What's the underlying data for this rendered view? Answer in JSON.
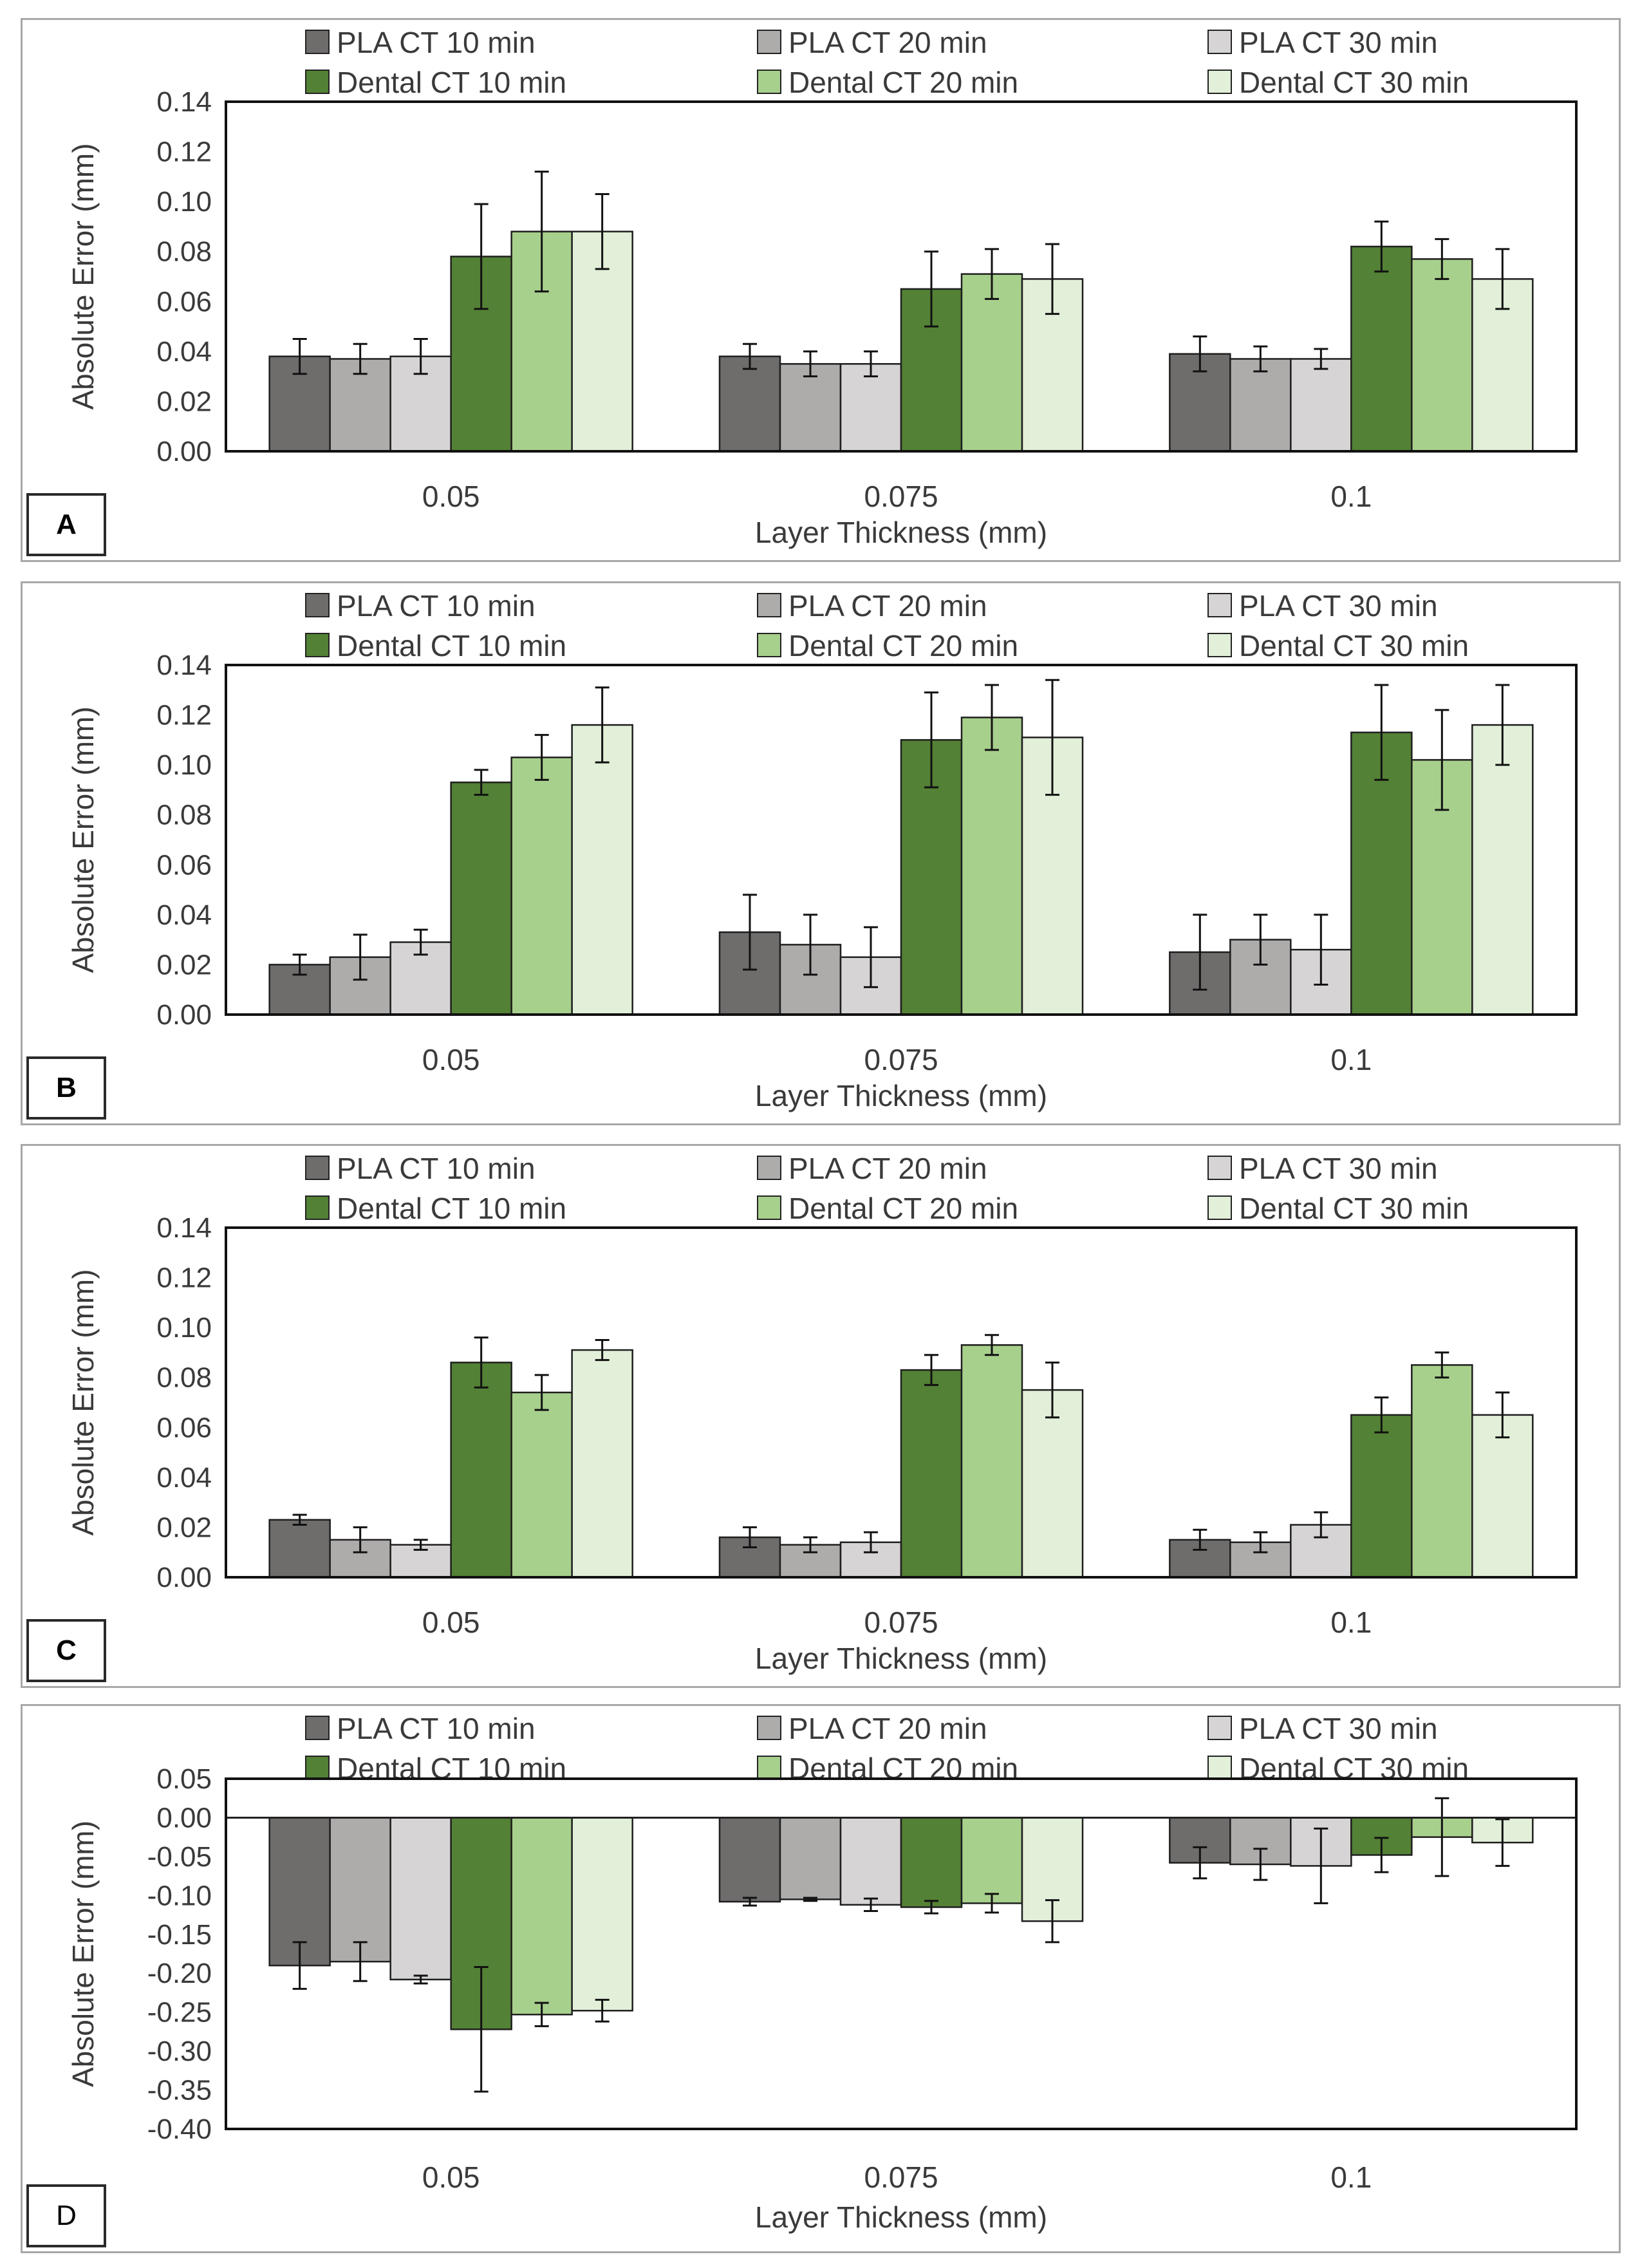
{
  "legend": [
    {
      "name": "PLA CT 10 min",
      "color": "#6f6c6c"
    },
    {
      "name": "PLA CT 20 min",
      "color": "#aeabab"
    },
    {
      "name": "PLA CT 30 min",
      "color": "#d6d4d4"
    },
    {
      "name": "Dental CT 10 min",
      "color": "#538135"
    },
    {
      "name": "Dental CT 20 min",
      "color": "#a8d08d"
    },
    {
      "name": "Dental CT 30 min",
      "color": "#e2efd9"
    }
  ],
  "chart_data": [
    {
      "panel": "A",
      "type": "bar",
      "xlabel": "Layer Thickness (mm)",
      "ylabel": "Absolute Error (mm)",
      "categories": [
        "0.05",
        "0.075",
        "0.1"
      ],
      "ylim": [
        0,
        0.14
      ],
      "yticks": [
        "0.00",
        "0.02",
        "0.04",
        "0.06",
        "0.08",
        "0.10",
        "0.12",
        "0.14"
      ],
      "series": [
        {
          "name": "PLA CT 10 min",
          "values": [
            0.038,
            0.038,
            0.039
          ],
          "errors": [
            0.007,
            0.005,
            0.007
          ]
        },
        {
          "name": "PLA CT 20 min",
          "values": [
            0.037,
            0.035,
            0.037
          ],
          "errors": [
            0.006,
            0.005,
            0.005
          ]
        },
        {
          "name": "PLA CT 30 min",
          "values": [
            0.038,
            0.035,
            0.037
          ],
          "errors": [
            0.007,
            0.005,
            0.004
          ]
        },
        {
          "name": "Dental CT 10 min",
          "values": [
            0.078,
            0.065,
            0.082
          ],
          "errors": [
            0.021,
            0.015,
            0.01
          ]
        },
        {
          "name": "Dental CT 20 min",
          "values": [
            0.088,
            0.071,
            0.077
          ],
          "errors": [
            0.024,
            0.01,
            0.008
          ]
        },
        {
          "name": "Dental CT 30 min",
          "values": [
            0.088,
            0.069,
            0.069
          ],
          "errors": [
            0.015,
            0.014,
            0.012
          ]
        }
      ]
    },
    {
      "panel": "B",
      "type": "bar",
      "xlabel": "Layer Thickness (mm)",
      "ylabel": "Absolute Error (mm)",
      "categories": [
        "0.05",
        "0.075",
        "0.1"
      ],
      "ylim": [
        0,
        0.14
      ],
      "yticks": [
        "0.00",
        "0.02",
        "0.04",
        "0.06",
        "0.08",
        "0.10",
        "0.12",
        "0.14"
      ],
      "series": [
        {
          "name": "PLA CT 10 min",
          "values": [
            0.02,
            0.033,
            0.025
          ],
          "errors": [
            0.004,
            0.015,
            0.015
          ]
        },
        {
          "name": "PLA CT 20 min",
          "values": [
            0.023,
            0.028,
            0.03
          ],
          "errors": [
            0.009,
            0.012,
            0.01
          ]
        },
        {
          "name": "PLA CT 30 min",
          "values": [
            0.029,
            0.023,
            0.026
          ],
          "errors": [
            0.005,
            0.012,
            0.014
          ]
        },
        {
          "name": "Dental CT 10 min",
          "values": [
            0.093,
            0.11,
            0.113
          ],
          "errors": [
            0.005,
            0.019,
            0.019
          ]
        },
        {
          "name": "Dental CT 20 min",
          "values": [
            0.103,
            0.119,
            0.102
          ],
          "errors": [
            0.009,
            0.013,
            0.02
          ]
        },
        {
          "name": "Dental CT 30 min",
          "values": [
            0.116,
            0.111,
            0.116
          ],
          "errors": [
            0.015,
            0.023,
            0.016
          ]
        }
      ]
    },
    {
      "panel": "C",
      "type": "bar",
      "xlabel": "Layer Thickness (mm)",
      "ylabel": "Absolute Error (mm)",
      "categories": [
        "0.05",
        "0.075",
        "0.1"
      ],
      "ylim": [
        0,
        0.14
      ],
      "yticks": [
        "0.00",
        "0.02",
        "0.04",
        "0.06",
        "0.08",
        "0.10",
        "0.12",
        "0.14"
      ],
      "series": [
        {
          "name": "PLA CT 10 min",
          "values": [
            0.023,
            0.016,
            0.015
          ],
          "errors": [
            0.002,
            0.004,
            0.004
          ]
        },
        {
          "name": "PLA CT 20 min",
          "values": [
            0.015,
            0.013,
            0.014
          ],
          "errors": [
            0.005,
            0.003,
            0.004
          ]
        },
        {
          "name": "PLA CT 30 min",
          "values": [
            0.013,
            0.014,
            0.021
          ],
          "errors": [
            0.002,
            0.004,
            0.005
          ]
        },
        {
          "name": "Dental CT 10 min",
          "values": [
            0.086,
            0.083,
            0.065
          ],
          "errors": [
            0.01,
            0.006,
            0.007
          ]
        },
        {
          "name": "Dental CT 20 min",
          "values": [
            0.074,
            0.093,
            0.085
          ],
          "errors": [
            0.007,
            0.004,
            0.005
          ]
        },
        {
          "name": "Dental CT 30 min",
          "values": [
            0.091,
            0.075,
            0.065
          ],
          "errors": [
            0.004,
            0.011,
            0.009
          ]
        }
      ]
    },
    {
      "panel": "D",
      "type": "bar",
      "xlabel": "Layer Thickness (mm)",
      "ylabel": "Absolute Error (mm)",
      "categories": [
        "0.05",
        "0.075",
        "0.1"
      ],
      "ylim": [
        -0.4,
        0.05
      ],
      "yticks": [
        "0.05",
        "0.00",
        "-0.05",
        "-0.10",
        "-0.15",
        "-0.20",
        "-0.25",
        "-0.30",
        "-0.35",
        "-0.40"
      ],
      "series": [
        {
          "name": "PLA CT 10 min",
          "values": [
            -0.19,
            -0.108,
            -0.058
          ],
          "errors": [
            0.03,
            0.005,
            0.02
          ]
        },
        {
          "name": "PLA CT 20 min",
          "values": [
            -0.185,
            -0.105,
            -0.06
          ],
          "errors": [
            0.025,
            0.002,
            0.02
          ]
        },
        {
          "name": "PLA CT 30 min",
          "values": [
            -0.208,
            -0.112,
            -0.062
          ],
          "errors": [
            0.005,
            0.008,
            0.048
          ]
        },
        {
          "name": "Dental CT 10 min",
          "values": [
            -0.272,
            -0.115,
            -0.048
          ],
          "errors": [
            0.08,
            0.008,
            0.022
          ]
        },
        {
          "name": "Dental CT 20 min",
          "values": [
            -0.253,
            -0.11,
            -0.025
          ],
          "errors": [
            0.015,
            0.012,
            0.05
          ]
        },
        {
          "name": "Dental CT 30 min",
          "values": [
            -0.248,
            -0.133,
            -0.032
          ],
          "errors": [
            0.014,
            0.027,
            0.03
          ]
        }
      ]
    }
  ]
}
